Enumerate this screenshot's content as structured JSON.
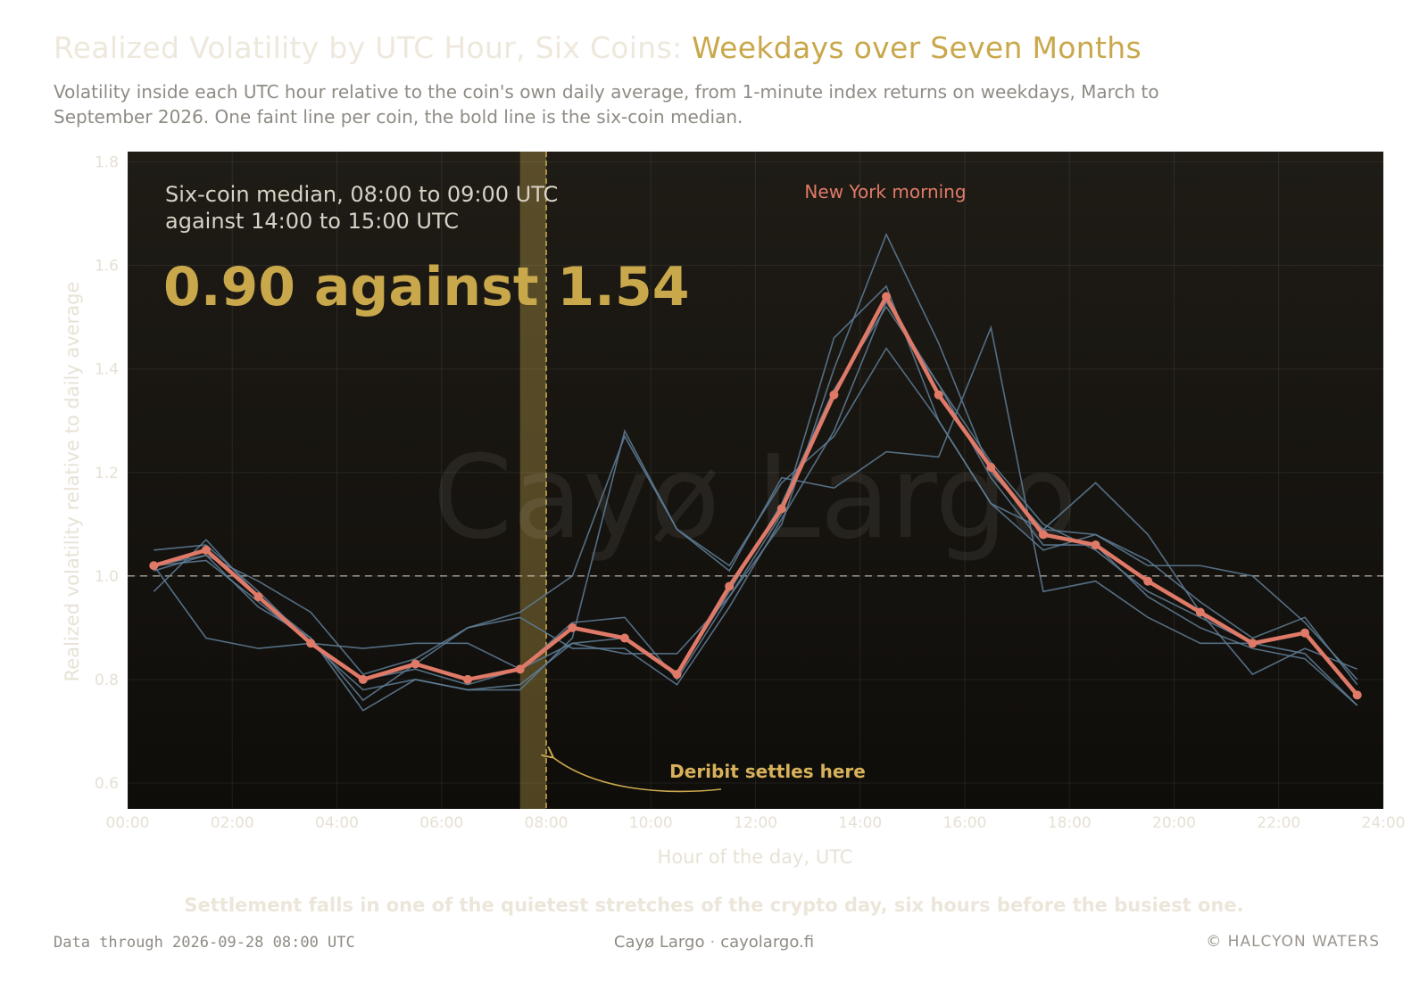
{
  "header": {
    "title_lead": "Realized Volatility by UTC Hour, Six Coins: ",
    "title_accent": "Weekdays over Seven Months",
    "subtitle": "Volatility inside each UTC hour relative to the coin's own daily average, from 1-minute index returns on weekdays, March to September 2026. One faint line per coin, the bold line is the six-coin median."
  },
  "chart_data": {
    "type": "line",
    "xlabel": "Hour of the day, UTC",
    "ylabel": "Realized volatility relative to daily average",
    "xlim": [
      0,
      24
    ],
    "ylim": [
      0.55,
      1.82
    ],
    "x_ticks": [
      "00:00",
      "02:00",
      "04:00",
      "06:00",
      "08:00",
      "10:00",
      "12:00",
      "14:00",
      "16:00",
      "18:00",
      "20:00",
      "22:00",
      "24:00"
    ],
    "y_ticks": [
      0.6,
      0.8,
      1.0,
      1.2,
      1.4,
      1.6,
      1.8
    ],
    "y_tick_labels": [
      "0.6",
      "0.8",
      "1.0",
      "1.2",
      "1.4",
      "1.6",
      "1.8"
    ],
    "grid": true,
    "reference_line": 1.0,
    "x": [
      0.5,
      1.5,
      2.5,
      3.5,
      4.5,
      5.5,
      6.5,
      7.5,
      8.5,
      9.5,
      10.5,
      11.5,
      12.5,
      13.5,
      14.5,
      15.5,
      16.5,
      17.5,
      18.5,
      19.5,
      20.5,
      21.5,
      22.5,
      23.5
    ],
    "median": {
      "values": [
        1.02,
        1.05,
        0.96,
        0.87,
        0.8,
        0.83,
        0.8,
        0.82,
        0.9,
        0.88,
        0.81,
        0.98,
        1.13,
        1.35,
        1.54,
        1.35,
        1.21,
        1.08,
        1.06,
        0.99,
        0.93,
        0.87,
        0.89,
        0.77
      ],
      "color": "#e07a68"
    },
    "coins": [
      {
        "values": [
          1.05,
          1.06,
          0.97,
          0.87,
          0.8,
          0.82,
          0.79,
          0.82,
          0.91,
          0.92,
          0.8,
          0.96,
          1.1,
          1.4,
          1.66,
          1.45,
          1.2,
          1.09,
          1.08,
          1.03,
          0.95,
          0.88,
          0.92,
          0.79
        ]
      },
      {
        "values": [
          1.01,
          1.04,
          0.94,
          0.88,
          0.74,
          0.8,
          0.78,
          0.78,
          0.88,
          1.28,
          1.09,
          1.01,
          1.19,
          1.17,
          1.24,
          1.23,
          1.48,
          0.97,
          0.99,
          0.92,
          0.87,
          0.87,
          0.85,
          0.75
        ]
      },
      {
        "values": [
          0.97,
          1.07,
          0.96,
          0.88,
          0.76,
          0.83,
          0.9,
          0.93,
          1.0,
          1.27,
          1.09,
          1.02,
          1.18,
          1.27,
          1.44,
          1.3,
          1.14,
          1.09,
          1.18,
          1.08,
          0.93,
          0.81,
          0.86,
          0.82
        ]
      },
      {
        "values": [
          1.02,
          0.88,
          0.86,
          0.87,
          0.86,
          0.87,
          0.87,
          0.82,
          0.87,
          0.85,
          0.85,
          0.96,
          1.12,
          1.46,
          1.56,
          1.3,
          1.14,
          1.05,
          1.08,
          1.02,
          1.02,
          1.0,
          0.91,
          0.8
        ]
      },
      {
        "values": [
          1.02,
          1.04,
          0.99,
          0.93,
          0.81,
          0.84,
          0.9,
          0.92,
          0.86,
          0.86,
          0.79,
          0.94,
          1.11,
          1.28,
          1.53,
          1.37,
          1.19,
          1.06,
          1.06,
          0.96,
          0.9,
          0.86,
          0.84,
          0.75
        ]
      },
      {
        "values": [
          1.02,
          1.03,
          0.95,
          0.87,
          0.78,
          0.8,
          0.78,
          0.79,
          0.87,
          0.88,
          0.81,
          0.97,
          1.14,
          1.36,
          1.52,
          1.37,
          1.22,
          1.1,
          1.05,
          0.97,
          0.92,
          0.87,
          0.89,
          0.77
        ]
      }
    ],
    "coin_color": "#5f7f99",
    "highlight_band": [
      7.5,
      8.0
    ],
    "highlight_line": 8.0,
    "callout": {
      "lead_line1": "Six-coin median, 08:00 to 09:00 UTC",
      "lead_line2": "against 14:00 to 15:00 UTC",
      "figure": "0.90 against 1.54"
    },
    "annotations": {
      "new_york": "New York morning",
      "deribit": "Deribit settles here"
    },
    "watermark": "Cayø Largo"
  },
  "takeaway": "Settlement falls in one of the quietest stretches of the crypto day, six hours before the busiest one.",
  "footer": {
    "data_through": "Data through 2026-09-28 08:00 UTC",
    "brand": "Cayø Largo",
    "separator": "·",
    "site": "cayolargo.fi",
    "credit": "© HALCYON WATERS"
  },
  "colors": {
    "panel_top": "#1e1b16",
    "panel_bottom": "#0f0d0a",
    "accent": "#c9a84c",
    "median": "#e07a68",
    "coin": "#5f7f99"
  }
}
